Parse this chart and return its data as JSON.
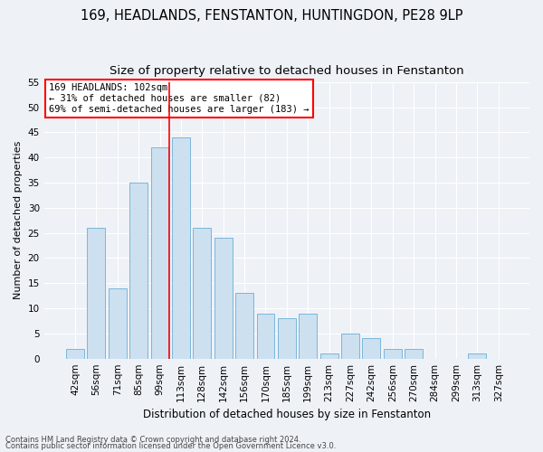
{
  "title1": "169, HEADLANDS, FENSTANTON, HUNTINGDON, PE28 9LP",
  "title2": "Size of property relative to detached houses in Fenstanton",
  "xlabel": "Distribution of detached houses by size in Fenstanton",
  "ylabel": "Number of detached properties",
  "categories": [
    "42sqm",
    "56sqm",
    "71sqm",
    "85sqm",
    "99sqm",
    "113sqm",
    "128sqm",
    "142sqm",
    "156sqm",
    "170sqm",
    "185sqm",
    "199sqm",
    "213sqm",
    "227sqm",
    "242sqm",
    "256sqm",
    "270sqm",
    "284sqm",
    "299sqm",
    "313sqm",
    "327sqm"
  ],
  "values": [
    2,
    26,
    14,
    35,
    42,
    44,
    26,
    24,
    13,
    9,
    8,
    9,
    1,
    5,
    4,
    2,
    2,
    0,
    0,
    1,
    0
  ],
  "bar_color": "#cce0f0",
  "bar_edge_color": "#6baed6",
  "red_line_x": 4.43,
  "annotation_line1": "169 HEADLANDS: 102sqm",
  "annotation_line2": "← 31% of detached houses are smaller (82)",
  "annotation_line3": "69% of semi-detached houses are larger (183) →",
  "ylim": [
    0,
    55
  ],
  "yticks": [
    0,
    5,
    10,
    15,
    20,
    25,
    30,
    35,
    40,
    45,
    50,
    55
  ],
  "footnote1": "Contains HM Land Registry data © Crown copyright and database right 2024.",
  "footnote2": "Contains public sector information licensed under the Open Government Licence v3.0.",
  "background_color": "#eef2f7",
  "grid_color": "#ffffff",
  "title_fontsize": 10.5,
  "subtitle_fontsize": 9.5,
  "xlabel_fontsize": 8.5,
  "ylabel_fontsize": 8,
  "tick_fontsize": 7.5,
  "annot_fontsize": 7.5,
  "footnote_fontsize": 6
}
